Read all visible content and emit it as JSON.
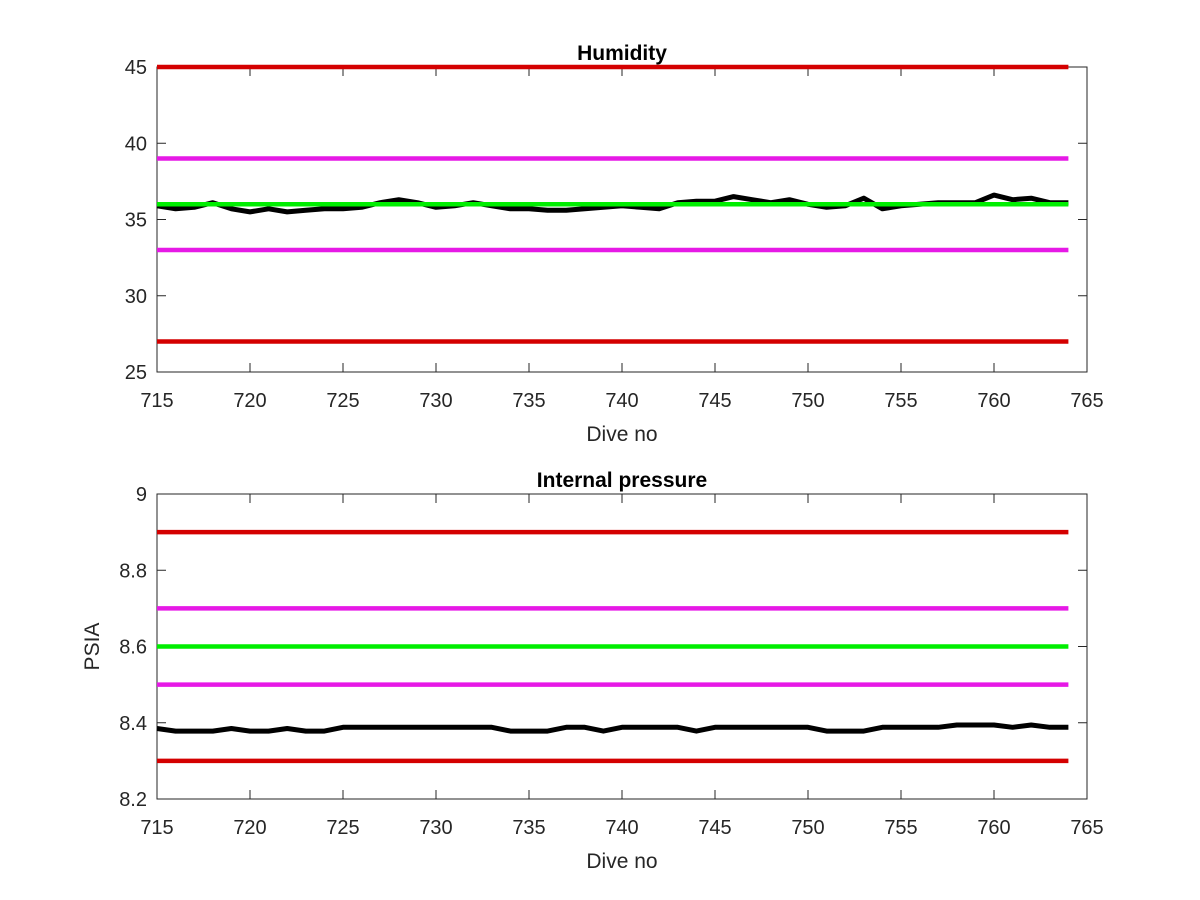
{
  "chart_data": [
    {
      "type": "line",
      "title": "Humidity",
      "xlabel": "Dive no",
      "ylabel": "",
      "xlim": [
        715,
        765
      ],
      "ylim": [
        25,
        45
      ],
      "xticks": [
        715,
        720,
        725,
        730,
        735,
        740,
        745,
        750,
        755,
        760,
        765
      ],
      "yticks": [
        25,
        30,
        35,
        40,
        45
      ],
      "grid": false,
      "series": [
        {
          "color": "#d40000",
          "x": [
            715,
            764
          ],
          "y": [
            45,
            45
          ]
        },
        {
          "color": "#e619e6",
          "x": [
            715,
            764
          ],
          "y": [
            39,
            39
          ]
        },
        {
          "color": "#000000",
          "x": [
            715,
            716,
            717,
            718,
            719,
            720,
            721,
            722,
            723,
            724,
            725,
            726,
            727,
            728,
            729,
            730,
            731,
            732,
            733,
            734,
            735,
            736,
            737,
            738,
            739,
            740,
            741,
            742,
            743,
            744,
            745,
            746,
            747,
            748,
            749,
            750,
            751,
            752,
            753,
            754,
            755,
            756,
            757,
            758,
            759,
            760,
            761,
            762,
            763,
            764
          ],
          "y": [
            35.9,
            35.7,
            35.8,
            36.1,
            35.7,
            35.5,
            35.7,
            35.5,
            35.6,
            35.7,
            35.7,
            35.8,
            36.1,
            36.3,
            36.1,
            35.8,
            35.9,
            36.1,
            35.9,
            35.7,
            35.7,
            35.6,
            35.6,
            35.7,
            35.8,
            35.9,
            35.8,
            35.7,
            36.1,
            36.2,
            36.2,
            36.5,
            36.3,
            36.1,
            36.3,
            36.0,
            35.8,
            35.9,
            36.4,
            35.7,
            35.9,
            36.0,
            36.1,
            36.1,
            36.1,
            36.6,
            36.3,
            36.4,
            36.1,
            36.1
          ]
        },
        {
          "color": "#00ee00",
          "x": [
            715,
            764
          ],
          "y": [
            36,
            36
          ]
        },
        {
          "color": "#e619e6",
          "x": [
            715,
            764
          ],
          "y": [
            33,
            33
          ]
        },
        {
          "color": "#d40000",
          "x": [
            715,
            764
          ],
          "y": [
            27,
            27
          ]
        }
      ]
    },
    {
      "type": "line",
      "title": "Internal pressure",
      "xlabel": "Dive no",
      "ylabel": "PSIA",
      "xlim": [
        715,
        765
      ],
      "ylim": [
        8.2,
        9
      ],
      "xticks": [
        715,
        720,
        725,
        730,
        735,
        740,
        745,
        750,
        755,
        760,
        765
      ],
      "yticks": [
        8.2,
        8.4,
        8.6,
        8.8,
        9
      ],
      "grid": false,
      "series": [
        {
          "color": "#d40000",
          "x": [
            715,
            764
          ],
          "y": [
            8.9,
            8.9
          ]
        },
        {
          "color": "#e619e6",
          "x": [
            715,
            764
          ],
          "y": [
            8.7,
            8.7
          ]
        },
        {
          "color": "#00ee00",
          "x": [
            715,
            764
          ],
          "y": [
            8.6,
            8.6
          ]
        },
        {
          "color": "#e619e6",
          "x": [
            715,
            764
          ],
          "y": [
            8.5,
            8.5
          ]
        },
        {
          "color": "#000000",
          "x": [
            715,
            716,
            717,
            718,
            719,
            720,
            721,
            722,
            723,
            724,
            725,
            726,
            727,
            728,
            729,
            730,
            731,
            732,
            733,
            734,
            735,
            736,
            737,
            738,
            739,
            740,
            741,
            742,
            743,
            744,
            745,
            746,
            747,
            748,
            749,
            750,
            751,
            752,
            753,
            754,
            755,
            756,
            757,
            758,
            759,
            760,
            761,
            762,
            763,
            764
          ],
          "y": [
            8.385,
            8.378,
            8.378,
            8.378,
            8.385,
            8.378,
            8.378,
            8.385,
            8.378,
            8.378,
            8.388,
            8.388,
            8.388,
            8.388,
            8.388,
            8.388,
            8.388,
            8.388,
            8.388,
            8.378,
            8.378,
            8.378,
            8.388,
            8.388,
            8.378,
            8.388,
            8.388,
            8.388,
            8.388,
            8.378,
            8.388,
            8.388,
            8.388,
            8.388,
            8.388,
            8.388,
            8.378,
            8.378,
            8.378,
            8.388,
            8.388,
            8.388,
            8.388,
            8.394,
            8.394,
            8.394,
            8.388,
            8.394,
            8.388,
            8.388
          ]
        },
        {
          "color": "#d40000",
          "x": [
            715,
            764
          ],
          "y": [
            8.3,
            8.3
          ]
        }
      ]
    }
  ]
}
